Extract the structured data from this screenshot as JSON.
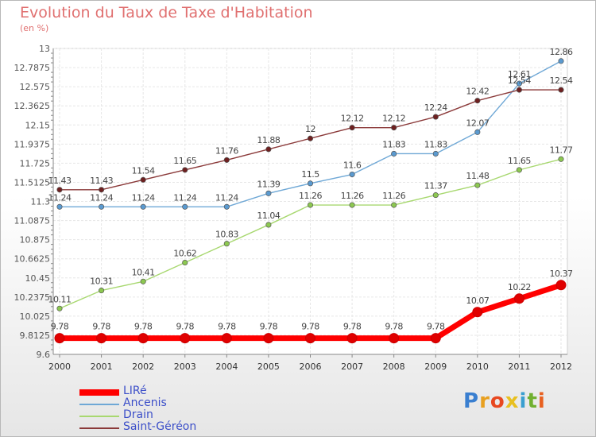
{
  "header": {
    "title": "Evolution du Taux de Taxe d'Habitation",
    "subtitle": "(en %)"
  },
  "logo": {
    "letters": [
      "P",
      "r",
      "o",
      "x",
      "i",
      "t",
      "i"
    ],
    "colors": [
      "#3a7fd0",
      "#e8a020",
      "#e84820",
      "#e8c020",
      "#3a9fd0",
      "#70b030",
      "#e86020"
    ]
  },
  "chart_data": {
    "type": "line",
    "title": "Evolution du Taux de Taxe d'Habitation",
    "subtitle": "(en %)",
    "xlabel": "",
    "ylabel": "",
    "x": [
      "2000",
      "2001",
      "2002",
      "2003",
      "2004",
      "2005",
      "2006",
      "2007",
      "2008",
      "2009",
      "2010",
      "2011",
      "2012"
    ],
    "ylim": [
      9.6,
      13
    ],
    "yticks": [
      "9.6",
      "9.8125",
      "10.025",
      "10.2375",
      "10.45",
      "10.6625",
      "10.875",
      "11.0875",
      "11.3",
      "11.5125",
      "11.725",
      "11.9375",
      "12.15",
      "12.3625",
      "12.575",
      "12.7875",
      "13"
    ],
    "grid": true,
    "legend_position": "bottom-left",
    "series": [
      {
        "name": "LIRé",
        "color": "#ff0000",
        "point_color": "#e00000",
        "emphasis": true,
        "values": [
          9.78,
          9.78,
          9.78,
          9.78,
          9.78,
          9.78,
          9.78,
          9.78,
          9.78,
          9.78,
          10.07,
          10.22,
          10.37
        ],
        "labels": [
          "9.78",
          "9.78",
          "9.78",
          "9.78",
          "9.78",
          "9.78",
          "9.78",
          "9.78",
          "9.78",
          "9.78",
          "10.07",
          "10.22",
          "10.37"
        ]
      },
      {
        "name": "Ancenis",
        "color": "#6fa8d6",
        "point_color": "#5a9ad0",
        "emphasis": false,
        "values": [
          11.24,
          11.24,
          11.24,
          11.24,
          11.24,
          11.39,
          11.5,
          11.6,
          11.83,
          11.83,
          12.07,
          12.61,
          12.86
        ],
        "labels": [
          "11.24",
          "11.24",
          "11.24",
          "11.24",
          "11.24",
          "11.39",
          "11.5",
          "11.6",
          "11.83",
          "11.83",
          "12.07",
          "12.61",
          "12.86"
        ]
      },
      {
        "name": "Drain",
        "color": "#a8d870",
        "point_color": "#8cc850",
        "emphasis": false,
        "values": [
          10.11,
          10.31,
          10.41,
          10.62,
          10.83,
          11.04,
          11.26,
          11.26,
          11.26,
          11.37,
          11.48,
          11.65,
          11.77
        ],
        "labels": [
          "10.11",
          "10.31",
          "10.41",
          "10.62",
          "10.83",
          "11.04",
          "11.26",
          "11.26",
          "11.26",
          "11.37",
          "11.48",
          "11.65",
          "11.77"
        ]
      },
      {
        "name": "Saint-Géréon",
        "color": "#8b3a3a",
        "point_color": "#6e2020",
        "emphasis": false,
        "values": [
          11.43,
          11.43,
          11.54,
          11.65,
          11.76,
          11.88,
          12,
          12.12,
          12.12,
          12.24,
          12.42,
          12.54,
          12.54
        ],
        "labels": [
          "11.43",
          "11.43",
          "11.54",
          "11.65",
          "11.76",
          "11.88",
          "12",
          "12.12",
          "12.12",
          "12.24",
          "12.42",
          "12.54",
          "12.54"
        ]
      }
    ]
  }
}
